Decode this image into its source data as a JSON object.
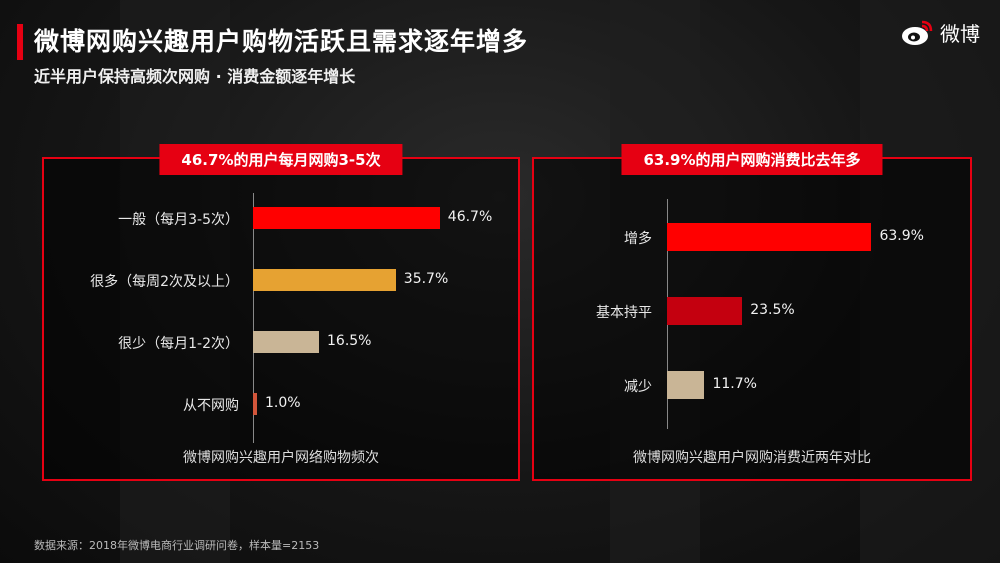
{
  "header": {
    "title": "微博网购兴趣用户购物活跃且需求逐年增多",
    "subtitle": "近半用户保持高频次网购 · 消费金额逐年增长",
    "logo_text": "微博",
    "logo_icon": "weibo-eye-icon"
  },
  "colors": {
    "accent": "#e60012",
    "bar_red": "#ff0000",
    "bar_darkred": "#c4000f",
    "bar_orange": "#e6a232",
    "bar_tan": "#c9b596",
    "bar_small": "#d2553a"
  },
  "chart_data": [
    {
      "type": "bar",
      "orientation": "horizontal",
      "header": "46.7%的用户每月网购3-5次",
      "caption": "微博网购兴趣用户网络购物频次",
      "categories": [
        "一般（每月3-5次）",
        "很多（每周2次及以上）",
        "很少（每月1-2次）",
        "从不网购"
      ],
      "values": [
        46.7,
        35.7,
        16.5,
        1.0
      ],
      "labels": [
        "46.7%",
        "35.7%",
        "16.5%",
        "1.0%"
      ],
      "unit": "%",
      "xlim": [
        0,
        50
      ],
      "grid": false,
      "legend": "none"
    },
    {
      "type": "bar",
      "orientation": "horizontal",
      "header": "63.9%的用户网购消费比去年多",
      "caption": "微博网购兴趣用户网购消费近两年对比",
      "categories": [
        "增多",
        "基本持平",
        "减少"
      ],
      "values": [
        63.9,
        23.5,
        11.7
      ],
      "labels": [
        "63.9%",
        "23.5%",
        "11.7%"
      ],
      "unit": "%",
      "xlim": [
        0,
        70
      ],
      "grid": false,
      "legend": "none"
    }
  ],
  "footer": {
    "source": "数据来源：2018年微博电商行业调研问卷，样本量=2153"
  }
}
